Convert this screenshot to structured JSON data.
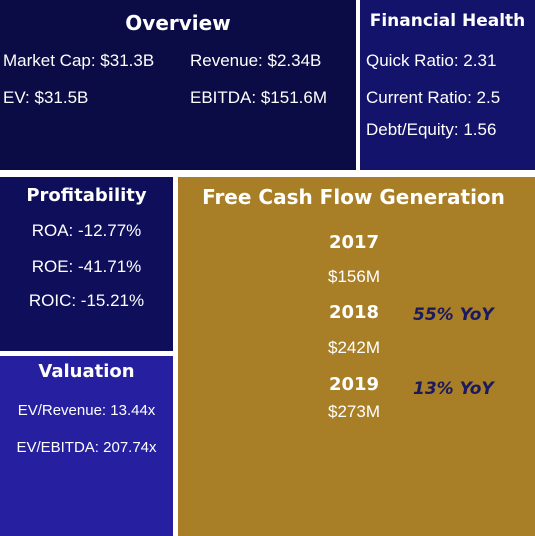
{
  "overview": {
    "title": "Overview",
    "market_cap": "Market Cap: $31.3B",
    "revenue": "Revenue: $2.34B",
    "ev": "EV: $31.5B",
    "ebitda": "EBITDA: $151.6M"
  },
  "financial_health": {
    "title": "Financial Health",
    "quick_ratio": "Quick Ratio: 2.31",
    "current_ratio": "Current Ratio: 2.5",
    "debt_equity": "Debt/Equity: 1.56"
  },
  "profitability": {
    "title": "Profitability",
    "roa": "ROA: -12.77%",
    "roe": "ROE: -41.71%",
    "roic": "ROIC: -15.21%"
  },
  "valuation": {
    "title": "Valuation",
    "ev_revenue": "EV/Revenue: 13.44x",
    "ev_ebitda": "EV/EBITDA: 207.74x"
  },
  "fcf": {
    "title": "Free Cash Flow Generation",
    "years": [
      {
        "year": "2017",
        "value": "$156M",
        "yoy": ""
      },
      {
        "year": "2018",
        "value": "$242M",
        "yoy": "55% YoY"
      },
      {
        "year": "2019",
        "value": "$273M",
        "yoy": "13% YoY"
      }
    ]
  },
  "colors": {
    "overview_bg": "#0b0b45",
    "health_bg": "#14136b",
    "profitability_bg": "#0f0e5b",
    "valuation_bg": "#2620a1",
    "fcf_bg": "#a87e26",
    "yoy_text": "#1b1a5e"
  }
}
